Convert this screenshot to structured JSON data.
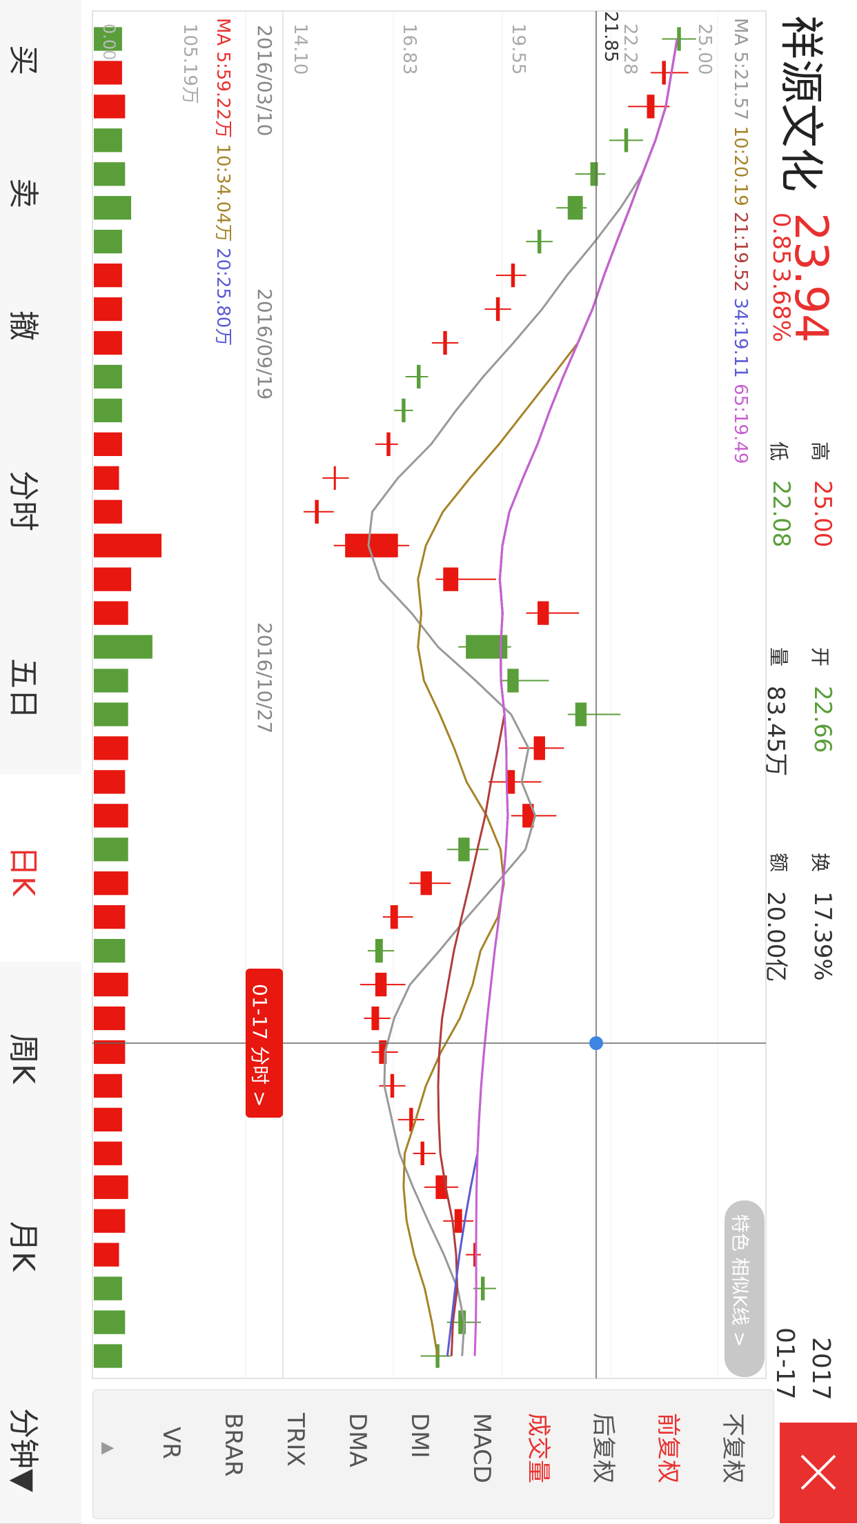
{
  "stock": {
    "name": "祥源文化",
    "price": "23.94",
    "change": "0.85",
    "change_pct": "3.68%"
  },
  "quote": {
    "high_label": "高",
    "high": "25.00",
    "low_label": "低",
    "low": "22.08",
    "open_label": "开",
    "open": "22.66",
    "volume_label": "量",
    "volume": "83.45万",
    "turnover_label": "换",
    "turnover": "17.39%",
    "amount_label": "额",
    "amount": "20.00亿"
  },
  "date": {
    "year": "2017",
    "md": "01-17"
  },
  "ma_price": {
    "prefix": "MA",
    "ma5": "5:21.57",
    "ma10": "10:20.19",
    "ma21": "21:19.52",
    "ma34": "34:19.11",
    "ma65": "65:19.49"
  },
  "ma_volume": {
    "prefix": "MA",
    "ma5": "5:59.22万",
    "ma10": "10:34.04万",
    "ma20": "20:25.80万"
  },
  "price_axis": [
    "25.00",
    "22.28",
    "21.85",
    "19.55",
    "16.83",
    "14.10"
  ],
  "volume_axis_max": "105.19万",
  "volume_axis_min": "0.00",
  "date_axis": [
    "2016/03/10",
    "2016/09/19",
    "2016/10/27"
  ],
  "crosshair_tag": "01-17 分时 >",
  "feature_button": "特色 相似K线 >",
  "adjust_options": {
    "none": "不复权",
    "forward": "前复权",
    "backward": "后复权"
  },
  "indicators": [
    "成交量",
    "MACD",
    "DMI",
    "DMA",
    "TRIX",
    "BRAR",
    "VR"
  ],
  "indicators_more": "▲",
  "bottom_nav": [
    "买",
    "卖",
    "撤",
    "分时",
    "五日",
    "日K",
    "周K",
    "月K",
    "分钟▼"
  ],
  "colors": {
    "up": "#e8170f",
    "down": "#5a9e3a",
    "ma5": "#999999",
    "ma10": "#a58428",
    "ma21": "#b13c3c",
    "ma34": "#5a5ad6",
    "ma65": "#c761cf",
    "accent": "#e8312f"
  },
  "chart_data": {
    "type": "candlestick",
    "ylim": [
      14.1,
      25.0
    ],
    "candles": [
      {
        "o": 24.1,
        "c": 24.0,
        "h": 24.5,
        "l": 23.6
      },
      {
        "o": 23.6,
        "c": 23.7,
        "h": 24.3,
        "l": 23.3
      },
      {
        "o": 23.2,
        "c": 23.4,
        "h": 23.8,
        "l": 22.7
      },
      {
        "o": 22.7,
        "c": 22.6,
        "h": 23.1,
        "l": 22.2
      },
      {
        "o": 21.9,
        "c": 21.7,
        "h": 22.1,
        "l": 21.3
      },
      {
        "o": 21.5,
        "c": 21.1,
        "h": 21.6,
        "l": 20.8
      },
      {
        "o": 20.4,
        "c": 20.3,
        "h": 20.7,
        "l": 20.0
      },
      {
        "o": 19.6,
        "c": 19.7,
        "h": 20.0,
        "l": 19.2
      },
      {
        "o": 19.2,
        "c": 19.3,
        "h": 19.6,
        "l": 18.9
      },
      {
        "o": 17.8,
        "c": 17.9,
        "h": 18.2,
        "l": 17.5
      },
      {
        "o": 17.2,
        "c": 17.1,
        "h": 17.4,
        "l": 16.8
      },
      {
        "o": 16.8,
        "c": 16.7,
        "h": 17.0,
        "l": 16.5
      },
      {
        "o": 16.3,
        "c": 16.4,
        "h": 16.6,
        "l": 16.0
      },
      {
        "o": 14.9,
        "c": 14.9,
        "h": 15.3,
        "l": 14.6
      },
      {
        "o": 14.4,
        "c": 14.5,
        "h": 14.9,
        "l": 14.1
      },
      {
        "o": 15.2,
        "c": 16.6,
        "h": 16.9,
        "l": 14.9
      },
      {
        "o": 17.8,
        "c": 18.2,
        "h": 19.2,
        "l": 17.6
      },
      {
        "o": 20.3,
        "c": 20.6,
        "h": 21.4,
        "l": 20.0
      },
      {
        "o": 19.5,
        "c": 18.4,
        "h": 19.6,
        "l": 18.2
      },
      {
        "o": 19.8,
        "c": 19.5,
        "h": 20.6,
        "l": 19.3
      },
      {
        "o": 21.6,
        "c": 21.3,
        "h": 22.5,
        "l": 21.1
      },
      {
        "o": 20.2,
        "c": 20.5,
        "h": 21.0,
        "l": 19.8
      },
      {
        "o": 19.5,
        "c": 19.7,
        "h": 20.4,
        "l": 19.0
      },
      {
        "o": 19.9,
        "c": 20.2,
        "h": 20.8,
        "l": 19.6
      },
      {
        "o": 18.5,
        "c": 18.2,
        "h": 19.0,
        "l": 17.9
      },
      {
        "o": 17.2,
        "c": 17.5,
        "h": 18.0,
        "l": 16.9
      },
      {
        "o": 16.4,
        "c": 16.6,
        "h": 17.0,
        "l": 16.2
      },
      {
        "o": 16.2,
        "c": 16.0,
        "h": 16.5,
        "l": 15.8
      },
      {
        "o": 16.0,
        "c": 16.3,
        "h": 16.8,
        "l": 15.6
      },
      {
        "o": 15.9,
        "c": 16.1,
        "h": 16.4,
        "l": 15.7
      },
      {
        "o": 16.1,
        "c": 16.3,
        "h": 16.6,
        "l": 15.9
      },
      {
        "o": 16.4,
        "c": 16.5,
        "h": 16.8,
        "l": 16.1
      },
      {
        "o": 16.9,
        "c": 17.0,
        "h": 17.3,
        "l": 16.6
      },
      {
        "o": 17.2,
        "c": 17.3,
        "h": 17.6,
        "l": 17.0
      },
      {
        "o": 17.6,
        "c": 17.9,
        "h": 18.2,
        "l": 17.3
      },
      {
        "o": 18.1,
        "c": 18.3,
        "h": 18.6,
        "l": 17.8
      },
      {
        "o": 18.6,
        "c": 18.6,
        "h": 18.8,
        "l": 18.4
      },
      {
        "o": 18.9,
        "c": 18.8,
        "h": 19.2,
        "l": 18.6
      },
      {
        "o": 18.4,
        "c": 18.2,
        "h": 18.8,
        "l": 17.9
      },
      {
        "o": 17.7,
        "c": 17.6,
        "h": 18.0,
        "l": 17.2
      }
    ]
  }
}
